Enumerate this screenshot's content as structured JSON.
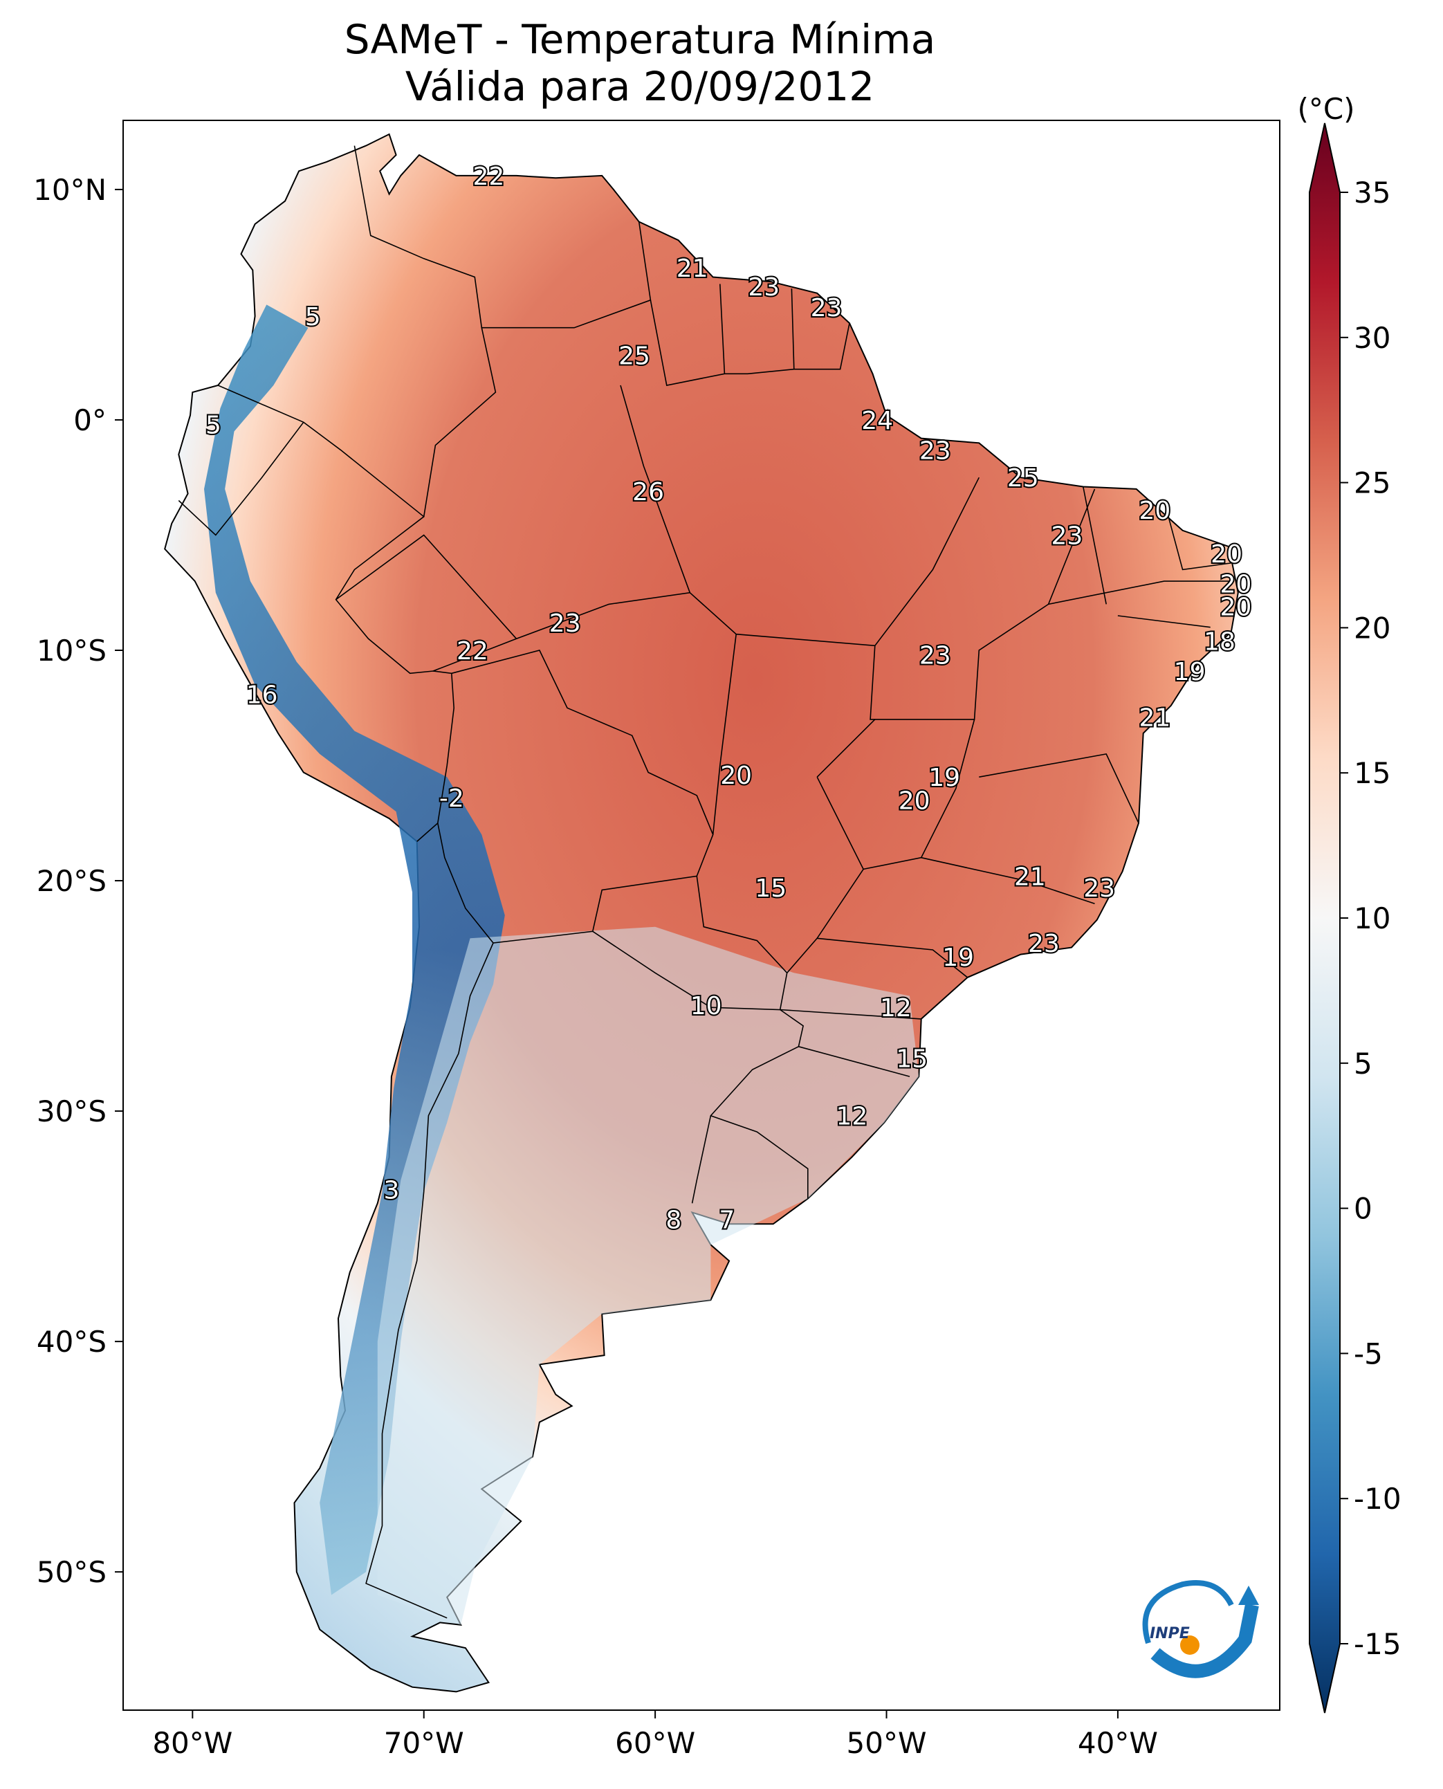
{
  "title": "SAMeT - Temperatura Mínima",
  "subtitle": "Válida para 20/09/2012",
  "colorbar": {
    "unit_label": "(°C)",
    "min": -15,
    "max": 35,
    "ticks": [
      "35",
      "30",
      "25",
      "20",
      "15",
      "10",
      "5",
      "0",
      "-5",
      "-10",
      "-15"
    ],
    "tick_values": [
      35,
      30,
      25,
      20,
      15,
      10,
      5,
      0,
      -5,
      -10,
      -15
    ],
    "colors": [
      "#053061",
      "#2166ac",
      "#4393c3",
      "#92c5de",
      "#d1e5f0",
      "#f7f7f7",
      "#fddbc7",
      "#f4a582",
      "#d6604d",
      "#b2182b",
      "#67001f"
    ]
  },
  "axes": {
    "lon_labels": [
      "80°W",
      "70°W",
      "60°W",
      "50°W",
      "40°W"
    ],
    "lon_values": [
      -80,
      -70,
      -60,
      -50,
      -40
    ],
    "lat_labels": [
      "10°N",
      "0°",
      "10°S",
      "20°S",
      "30°S",
      "40°S",
      "50°S"
    ],
    "lat_values": [
      10,
      0,
      -10,
      -20,
      -30,
      -40,
      -50
    ],
    "lon_range": [
      -83,
      -33
    ],
    "lat_range": [
      -56,
      13
    ]
  },
  "logo": {
    "text": "INPE"
  },
  "point_labels": [
    {
      "text": "22",
      "lon": -67.2,
      "lat": 10.6
    },
    {
      "text": "5",
      "lon": -74.8,
      "lat": 4.5
    },
    {
      "text": "21",
      "lon": -58.4,
      "lat": 6.6
    },
    {
      "text": "23",
      "lon": -55.3,
      "lat": 5.8
    },
    {
      "text": "23",
      "lon": -52.6,
      "lat": 4.9
    },
    {
      "text": "25",
      "lon": -60.9,
      "lat": 2.8
    },
    {
      "text": "5",
      "lon": -79.1,
      "lat": -0.2
    },
    {
      "text": "24",
      "lon": -50.4,
      "lat": 0.0
    },
    {
      "text": "23",
      "lon": -47.9,
      "lat": -1.3
    },
    {
      "text": "25",
      "lon": -44.1,
      "lat": -2.5
    },
    {
      "text": "26",
      "lon": -60.3,
      "lat": -3.1
    },
    {
      "text": "20",
      "lon": -38.4,
      "lat": -3.9
    },
    {
      "text": "23",
      "lon": -42.2,
      "lat": -5.0
    },
    {
      "text": "20",
      "lon": -35.3,
      "lat": -5.8
    },
    {
      "text": "20",
      "lon": -34.9,
      "lat": -7.1
    },
    {
      "text": "20",
      "lon": -34.9,
      "lat": -8.1
    },
    {
      "text": "23",
      "lon": -63.9,
      "lat": -8.8
    },
    {
      "text": "22",
      "lon": -67.9,
      "lat": -10.0
    },
    {
      "text": "23",
      "lon": -47.9,
      "lat": -10.2
    },
    {
      "text": "18",
      "lon": -35.6,
      "lat": -9.6
    },
    {
      "text": "19",
      "lon": -36.9,
      "lat": -10.9
    },
    {
      "text": "16",
      "lon": -77.0,
      "lat": -11.9
    },
    {
      "text": "21",
      "lon": -38.4,
      "lat": -12.9
    },
    {
      "text": "20",
      "lon": -56.5,
      "lat": -15.4
    },
    {
      "text": "19",
      "lon": -47.5,
      "lat": -15.5
    },
    {
      "text": "20",
      "lon": -48.8,
      "lat": -16.5
    },
    {
      "text": "-2",
      "lon": -68.8,
      "lat": -16.4
    },
    {
      "text": "21",
      "lon": -43.8,
      "lat": -19.8
    },
    {
      "text": "15",
      "lon": -55.0,
      "lat": -20.3
    },
    {
      "text": "23",
      "lon": -40.8,
      "lat": -20.3
    },
    {
      "text": "23",
      "lon": -43.2,
      "lat": -22.7
    },
    {
      "text": "19",
      "lon": -46.9,
      "lat": -23.3
    },
    {
      "text": "10",
      "lon": -57.8,
      "lat": -25.4
    },
    {
      "text": "12",
      "lon": -49.6,
      "lat": -25.5
    },
    {
      "text": "15",
      "lon": -48.9,
      "lat": -27.7
    },
    {
      "text": "12",
      "lon": -51.5,
      "lat": -30.2
    },
    {
      "text": "3",
      "lon": -71.4,
      "lat": -33.4
    },
    {
      "text": "8",
      "lon": -59.2,
      "lat": -34.7
    },
    {
      "text": "7",
      "lon": -56.9,
      "lat": -34.7
    }
  ]
}
